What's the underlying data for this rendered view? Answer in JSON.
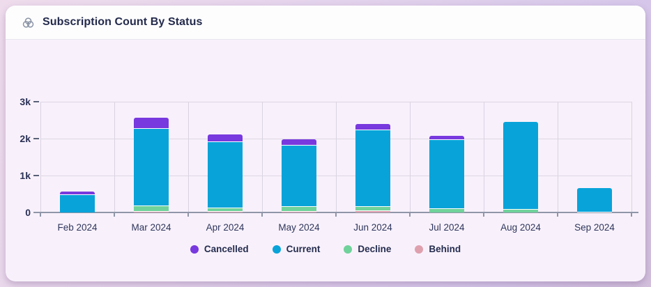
{
  "header": {
    "title": "Subscription Count By Status"
  },
  "chart_data": {
    "type": "bar",
    "stacked": true,
    "title": "Subscription Count By Status",
    "categories": [
      "Feb 2024",
      "Mar 2024",
      "Apr 2024",
      "May 2024",
      "Jun 2024",
      "Jul 2024",
      "Aug 2024",
      "Sep 2024"
    ],
    "series": [
      {
        "name": "Behind",
        "color": "#dfa0ae",
        "values": [
          0,
          40,
          40,
          40,
          50,
          0,
          0,
          0
        ]
      },
      {
        "name": "Decline",
        "color": "#6fd29a",
        "values": [
          0,
          150,
          100,
          130,
          120,
          110,
          100,
          25
        ]
      },
      {
        "name": "Current",
        "color": "#08a3d9",
        "values": [
          490,
          2090,
          1780,
          1660,
          2080,
          1870,
          2350,
          635
        ]
      },
      {
        "name": "Cancelled",
        "color": "#7839de",
        "values": [
          70,
          280,
          190,
          150,
          150,
          90,
          0,
          0
        ]
      }
    ],
    "stack_order": "bottom-to-top",
    "legend": [
      "Cancelled",
      "Current",
      "Decline",
      "Behind"
    ],
    "legend_position": "bottom",
    "yticks": [
      {
        "label": "3k",
        "value": 3000
      },
      {
        "label": "2k",
        "value": 2000
      },
      {
        "label": "1k",
        "value": 1000
      },
      {
        "label": "0",
        "value": 0
      }
    ],
    "ylim": [
      0,
      3000
    ],
    "grid": true,
    "xlabel": "",
    "ylabel": ""
  }
}
